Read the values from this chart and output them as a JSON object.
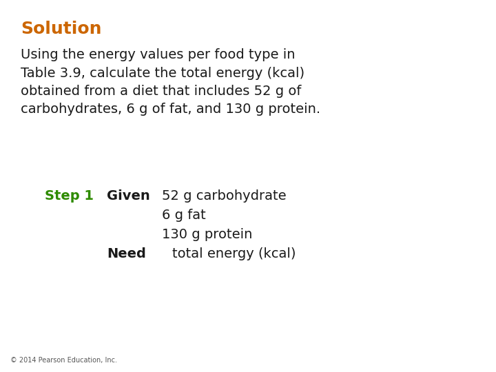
{
  "title": "Solution",
  "title_color": "#CC6600",
  "title_fontsize": 18,
  "background_color": "#ffffff",
  "body_text": "Using the energy values per food type in\nTable 3.9, calculate the total energy (kcal)\nobtained from a diet that includes 52 g of\ncarbohydrates, 6 g of fat, and 130 g protein.",
  "body_color": "#1a1a1a",
  "body_fontsize": 14,
  "step_label": "Step 1",
  "step_color": "#2e8b00",
  "step_fontsize": 14,
  "given_label": "Given",
  "given_items": [
    "52 g carbohydrate",
    "6 g fat",
    "130 g protein"
  ],
  "need_label": "Need",
  "need_item": "total energy (kcal)",
  "footer": "© 2014 Pearson Education, Inc.",
  "footer_fontsize": 7,
  "footer_color": "#555555"
}
